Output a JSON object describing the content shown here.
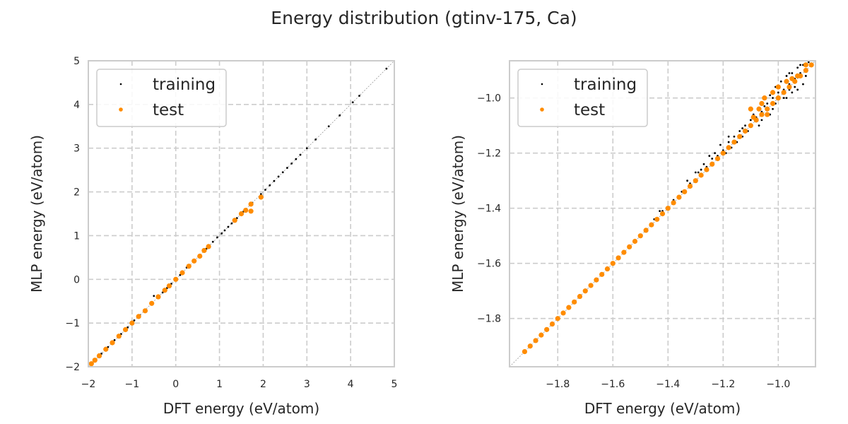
{
  "title": "Energy distribution (gtinv-175, Ca)",
  "colors": {
    "training": "#000000",
    "test": "#ff8c00",
    "grid": "#cccccc",
    "frame": "#cccccc",
    "diagonal": "#999999"
  },
  "chart_data": [
    {
      "type": "scatter",
      "xlabel": "DFT energy (eV/atom)",
      "ylabel": "MLP energy (eV/atom)",
      "xlim": [
        -2,
        5
      ],
      "ylim": [
        -2,
        5
      ],
      "xticks": [
        "−2",
        "−1",
        "0",
        "1",
        "2",
        "3",
        "4",
        "5"
      ],
      "yticks": [
        "−2",
        "−1",
        "0",
        "1",
        "2",
        "3",
        "4",
        "5"
      ],
      "grid": true,
      "legend_position": "top-left",
      "series": [
        {
          "name": "training",
          "points": [
            [
              -1.92,
              -1.92
            ],
            [
              -1.85,
              -1.84
            ],
            [
              -1.7,
              -1.7
            ],
            [
              -1.55,
              -1.55
            ],
            [
              -1.4,
              -1.39
            ],
            [
              -1.25,
              -1.25
            ],
            [
              -1.1,
              -1.1
            ],
            [
              -0.95,
              -0.94
            ],
            [
              -0.82,
              -0.82
            ],
            [
              -0.7,
              -0.7
            ],
            [
              -0.55,
              -0.55
            ],
            [
              -0.5,
              -0.38
            ],
            [
              -0.4,
              -0.4
            ],
            [
              -0.3,
              -0.3
            ],
            [
              -0.2,
              -0.2
            ],
            [
              -0.1,
              -0.1
            ],
            [
              0.0,
              0.0
            ],
            [
              0.1,
              0.1
            ],
            [
              0.25,
              0.27
            ],
            [
              0.4,
              0.42
            ],
            [
              0.55,
              0.56
            ],
            [
              0.7,
              0.7
            ],
            [
              0.85,
              0.86
            ],
            [
              0.95,
              0.96
            ],
            [
              1.05,
              1.05
            ],
            [
              1.12,
              1.12
            ],
            [
              1.2,
              1.2
            ],
            [
              1.28,
              1.28
            ],
            [
              1.4,
              1.4
            ],
            [
              1.55,
              1.55
            ],
            [
              1.75,
              1.75
            ],
            [
              1.95,
              1.95
            ],
            [
              2.05,
              2.05
            ],
            [
              2.15,
              2.15
            ],
            [
              2.25,
              2.25
            ],
            [
              2.35,
              2.35
            ],
            [
              2.45,
              2.45
            ],
            [
              2.55,
              2.55
            ],
            [
              2.65,
              2.65
            ],
            [
              2.75,
              2.75
            ],
            [
              2.85,
              2.85
            ],
            [
              3.0,
              3.0
            ],
            [
              3.2,
              3.2
            ],
            [
              3.5,
              3.5
            ],
            [
              3.75,
              3.75
            ],
            [
              4.05,
              4.05
            ],
            [
              4.2,
              4.2
            ],
            [
              4.82,
              4.82
            ]
          ]
        },
        {
          "name": "test",
          "points": [
            [
              -1.93,
              -1.93
            ],
            [
              -1.85,
              -1.85
            ],
            [
              -1.75,
              -1.75
            ],
            [
              -1.6,
              -1.6
            ],
            [
              -1.45,
              -1.45
            ],
            [
              -1.3,
              -1.3
            ],
            [
              -1.15,
              -1.15
            ],
            [
              -1.0,
              -1.0
            ],
            [
              -0.85,
              -0.85
            ],
            [
              -0.7,
              -0.72
            ],
            [
              -0.55,
              -0.55
            ],
            [
              -0.4,
              -0.4
            ],
            [
              -0.25,
              -0.25
            ],
            [
              -0.15,
              -0.15
            ],
            [
              0.0,
              0.0
            ],
            [
              0.15,
              0.15
            ],
            [
              0.3,
              0.3
            ],
            [
              0.42,
              0.42
            ],
            [
              0.55,
              0.53
            ],
            [
              0.65,
              0.66
            ],
            [
              0.75,
              0.75
            ],
            [
              1.35,
              1.35
            ],
            [
              1.5,
              1.5
            ],
            [
              1.6,
              1.58
            ],
            [
              1.72,
              1.72
            ],
            [
              1.72,
              1.56
            ],
            [
              1.95,
              1.88
            ]
          ]
        }
      ]
    },
    {
      "type": "scatter",
      "xlabel": "DFT energy (eV/atom)",
      "ylabel": "MLP energy (eV/atom)",
      "xlim": [
        -1.975,
        -0.865
      ],
      "ylim": [
        -1.975,
        -0.865
      ],
      "xticks": [
        "−1.8",
        "−1.6",
        "−1.4",
        "−1.2",
        "−1.0"
      ],
      "yticks": [
        "−1.8",
        "−1.6",
        "−1.4",
        "−1.2",
        "−1.0"
      ],
      "grid": true,
      "legend_position": "top-left",
      "series": [
        {
          "name": "training",
          "points": [
            [
              -1.92,
              -1.92
            ],
            [
              -1.88,
              -1.88
            ],
            [
              -1.84,
              -1.84
            ],
            [
              -1.8,
              -1.8
            ],
            [
              -1.76,
              -1.76
            ],
            [
              -1.72,
              -1.72
            ],
            [
              -1.68,
              -1.68
            ],
            [
              -1.64,
              -1.64
            ],
            [
              -1.6,
              -1.6
            ],
            [
              -1.56,
              -1.56
            ],
            [
              -1.52,
              -1.52
            ],
            [
              -1.48,
              -1.48
            ],
            [
              -1.45,
              -1.44
            ],
            [
              -1.42,
              -1.41
            ],
            [
              -1.38,
              -1.37
            ],
            [
              -1.35,
              -1.34
            ],
            [
              -1.32,
              -1.31
            ],
            [
              -1.3,
              -1.27
            ],
            [
              -1.28,
              -1.26
            ],
            [
              -1.26,
              -1.25
            ],
            [
              -1.24,
              -1.22
            ],
            [
              -1.22,
              -1.21
            ],
            [
              -1.2,
              -1.19
            ],
            [
              -1.18,
              -1.16
            ],
            [
              -1.16,
              -1.14
            ],
            [
              -1.14,
              -1.12
            ],
            [
              -1.12,
              -1.1
            ],
            [
              -1.1,
              -1.08
            ],
            [
              -1.08,
              -1.07
            ],
            [
              -1.06,
              -1.05
            ],
            [
              -1.04,
              -1.02
            ],
            [
              -1.02,
              -1.0
            ],
            [
              -1.0,
              -0.98
            ],
            [
              -0.98,
              -0.97
            ],
            [
              -0.96,
              -0.95
            ],
            [
              -0.94,
              -0.93
            ],
            [
              -0.92,
              -0.91
            ],
            [
              -0.9,
              -0.9
            ],
            [
              -0.88,
              -0.88
            ],
            [
              -1.07,
              -1.1
            ],
            [
              -1.03,
              -1.06
            ],
            [
              -1.01,
              -1.02
            ],
            [
              -0.97,
              -1.0
            ],
            [
              -0.95,
              -0.98
            ],
            [
              -0.93,
              -0.97
            ],
            [
              -0.91,
              -0.95
            ],
            [
              -1.09,
              -1.06
            ],
            [
              -1.05,
              -1.03
            ],
            [
              -1.03,
              -0.99
            ],
            [
              -1.01,
              -0.96
            ],
            [
              -0.99,
              -0.94
            ],
            [
              -0.97,
              -0.92
            ],
            [
              -0.95,
              -0.91
            ],
            [
              -0.93,
              -0.89
            ],
            [
              -0.91,
              -0.88
            ],
            [
              -1.15,
              -1.16
            ],
            [
              -1.13,
              -1.14
            ],
            [
              -1.11,
              -1.12
            ],
            [
              -1.27,
              -1.24
            ],
            [
              -1.25,
              -1.21
            ],
            [
              -1.19,
              -1.2
            ],
            [
              -1.17,
              -1.18
            ],
            [
              -1.43,
              -1.41
            ],
            [
              -1.33,
              -1.3
            ],
            [
              -1.29,
              -1.27
            ],
            [
              -1.23,
              -1.2
            ],
            [
              -1.21,
              -1.17
            ],
            [
              -1.18,
              -1.14
            ],
            [
              -1.13,
              -1.11
            ],
            [
              -1.06,
              -1.08
            ],
            [
              -1.02,
              -1.04
            ],
            [
              -0.98,
              -1.0
            ],
            [
              -0.96,
              -0.97
            ],
            [
              -0.94,
              -0.96
            ],
            [
              -0.9,
              -0.92
            ],
            [
              -0.89,
              -0.87
            ],
            [
              -0.92,
              -0.88
            ],
            [
              -0.96,
              -0.91
            ]
          ]
        },
        {
          "name": "test",
          "points": [
            [
              -1.92,
              -1.92
            ],
            [
              -1.9,
              -1.9
            ],
            [
              -1.88,
              -1.88
            ],
            [
              -1.86,
              -1.86
            ],
            [
              -1.84,
              -1.84
            ],
            [
              -1.82,
              -1.82
            ],
            [
              -1.8,
              -1.8
            ],
            [
              -1.78,
              -1.78
            ],
            [
              -1.76,
              -1.76
            ],
            [
              -1.74,
              -1.74
            ],
            [
              -1.72,
              -1.72
            ],
            [
              -1.7,
              -1.7
            ],
            [
              -1.68,
              -1.68
            ],
            [
              -1.66,
              -1.66
            ],
            [
              -1.64,
              -1.64
            ],
            [
              -1.62,
              -1.62
            ],
            [
              -1.6,
              -1.6
            ],
            [
              -1.58,
              -1.58
            ],
            [
              -1.56,
              -1.56
            ],
            [
              -1.54,
              -1.54
            ],
            [
              -1.52,
              -1.52
            ],
            [
              -1.5,
              -1.5
            ],
            [
              -1.48,
              -1.48
            ],
            [
              -1.46,
              -1.46
            ],
            [
              -1.44,
              -1.44
            ],
            [
              -1.42,
              -1.42
            ],
            [
              -1.4,
              -1.4
            ],
            [
              -1.38,
              -1.38
            ],
            [
              -1.36,
              -1.36
            ],
            [
              -1.34,
              -1.34
            ],
            [
              -1.32,
              -1.32
            ],
            [
              -1.3,
              -1.3
            ],
            [
              -1.28,
              -1.28
            ],
            [
              -1.26,
              -1.26
            ],
            [
              -1.24,
              -1.24
            ],
            [
              -1.22,
              -1.22
            ],
            [
              -1.2,
              -1.2
            ],
            [
              -1.18,
              -1.18
            ],
            [
              -1.16,
              -1.16
            ],
            [
              -1.14,
              -1.14
            ],
            [
              -1.12,
              -1.12
            ],
            [
              -1.1,
              -1.1
            ],
            [
              -1.08,
              -1.08
            ],
            [
              -1.06,
              -1.06
            ],
            [
              -1.04,
              -1.04
            ],
            [
              -1.02,
              -1.02
            ],
            [
              -1.0,
              -1.0
            ],
            [
              -0.98,
              -0.98
            ],
            [
              -0.96,
              -0.96
            ],
            [
              -0.94,
              -0.94
            ],
            [
              -0.92,
              -0.92
            ],
            [
              -0.9,
              -0.9
            ],
            [
              -0.88,
              -0.88
            ],
            [
              -1.07,
              -1.04
            ],
            [
              -1.05,
              -1.0
            ],
            [
              -1.02,
              -0.98
            ],
            [
              -1.0,
              -0.96
            ],
            [
              -0.97,
              -0.94
            ],
            [
              -0.95,
              -0.93
            ],
            [
              -0.93,
              -0.92
            ],
            [
              -1.06,
              -1.02
            ],
            [
              -1.04,
              -1.06
            ],
            [
              -1.09,
              -1.07
            ],
            [
              -0.9,
              -0.88
            ],
            [
              -1.1,
              -1.04
            ]
          ]
        }
      ]
    }
  ]
}
